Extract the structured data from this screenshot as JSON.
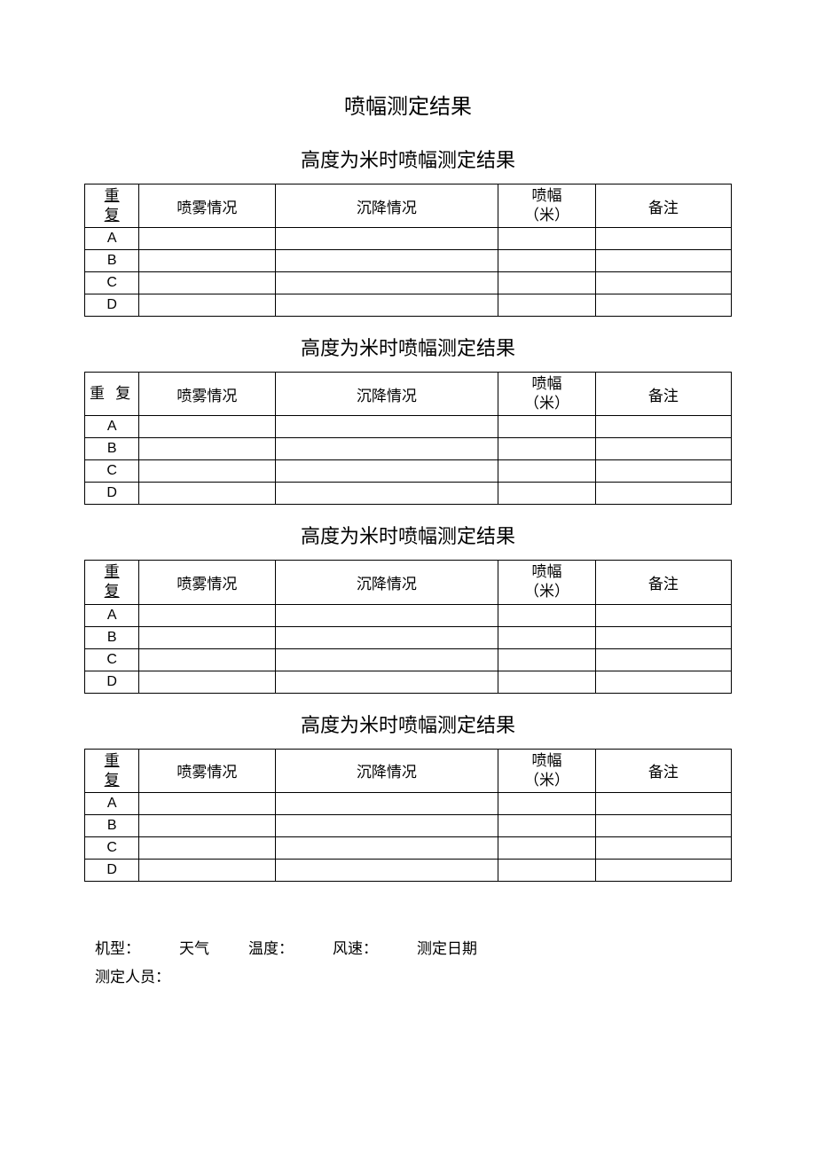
{
  "main_title": "喷幅测定结果",
  "section_title": "高度为米时喷幅测定结果",
  "table": {
    "columns": {
      "repeat_line1": "重",
      "repeat_line2": "复",
      "spray": "喷雾情况",
      "settle": "沉降情况",
      "width_line1": "喷幅",
      "width_line2": "（米）",
      "remark": "备注"
    },
    "repeat_header_spaced": "重 复",
    "rows": [
      "A",
      "B",
      "C",
      "D"
    ],
    "col_widths_pct": [
      8,
      19,
      32,
      14,
      19
    ],
    "border_color": "#000000"
  },
  "sections_count": 4,
  "footer": {
    "line1": {
      "model": "机型：",
      "weather": "天气",
      "temperature": "温度：",
      "wind": "风速：",
      "date": "测定日期"
    },
    "line2": "测定人员："
  },
  "typography": {
    "title_fontsize": 24,
    "subtitle_fontsize": 22,
    "header_fontsize": 17,
    "body_fontsize": 16,
    "footer_fontsize": 17
  },
  "colors": {
    "background": "#ffffff",
    "text": "#000000",
    "border": "#000000"
  }
}
